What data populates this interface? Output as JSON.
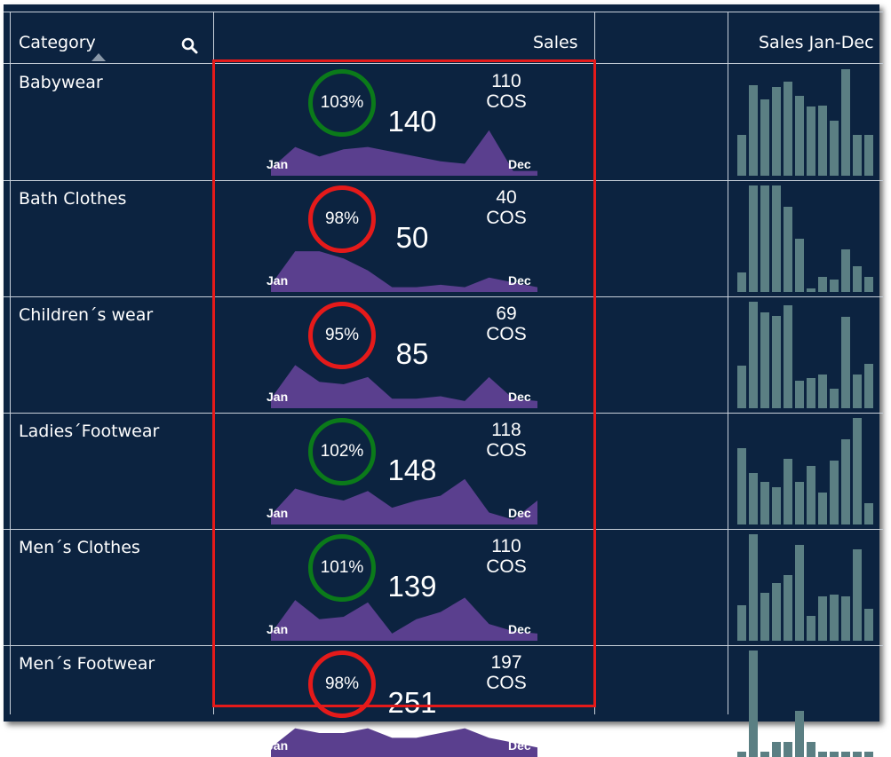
{
  "header": {
    "category_label": "Category",
    "sales_label": "Sales",
    "sales_range_label": "Sales Jan-Dec",
    "search_icon": "search-icon",
    "sort_icon": "sort-ascending-icon"
  },
  "spark_start_label": "Jan",
  "spark_end_label": "Dec",
  "colors": {
    "background": "#0c2340",
    "good": "#0b7a1a",
    "bad": "#e51a1a",
    "area": "#5a3f8e",
    "bars": "#5b7f83",
    "highlight": "#e51a1a"
  },
  "rows": [
    {
      "category": "Babywear",
      "pct": "103%",
      "status": "good",
      "sales": "140",
      "cos_value": "110",
      "cos_label": "COS",
      "spark": [
        0.15,
        0.6,
        0.4,
        0.55,
        0.6,
        0.5,
        0.4,
        0.3,
        0.25,
        0.95,
        0.1,
        0.1
      ],
      "monthly": [
        0.38,
        0.85,
        0.72,
        0.83,
        0.88,
        0.75,
        0.65,
        0.66,
        0.52,
        1.0,
        0.38,
        0.38
      ]
    },
    {
      "category": "Bath Clothes",
      "pct": "98%",
      "status": "bad",
      "sales": "50",
      "cos_value": "40",
      "cos_label": "COS",
      "spark": [
        0.15,
        0.85,
        0.85,
        0.7,
        0.45,
        0.1,
        0.1,
        0.15,
        0.1,
        0.3,
        0.2,
        0.1
      ],
      "monthly": [
        0.18,
        1.0,
        1.0,
        1.0,
        0.8,
        0.5,
        0.03,
        0.14,
        0.12,
        0.4,
        0.24,
        0.14
      ]
    },
    {
      "category": "Children´s wear",
      "pct": "95%",
      "status": "bad",
      "sales": "85",
      "cos_value": "69",
      "cos_label": "COS",
      "spark": [
        0.2,
        0.9,
        0.55,
        0.5,
        0.65,
        0.2,
        0.2,
        0.25,
        0.15,
        0.65,
        0.2,
        0.15
      ],
      "monthly": [
        0.4,
        1.0,
        0.9,
        0.87,
        0.97,
        0.26,
        0.28,
        0.32,
        0.18,
        0.86,
        0.32,
        0.42
      ]
    },
    {
      "category": "Ladies´Footwear",
      "pct": "102%",
      "status": "good",
      "sales": "148",
      "cos_value": "118",
      "cos_label": "COS",
      "spark": [
        0.2,
        0.75,
        0.6,
        0.5,
        0.7,
        0.35,
        0.5,
        0.6,
        0.95,
        0.25,
        0.1,
        0.5
      ],
      "monthly": [
        0.72,
        0.48,
        0.4,
        0.35,
        0.62,
        0.4,
        0.55,
        0.3,
        0.6,
        0.8,
        1.0,
        0.2
      ]
    },
    {
      "category": "Men´s Clothes",
      "pct": "101%",
      "status": "good",
      "sales": "139",
      "cos_value": "110",
      "cos_label": "COS",
      "spark": [
        0.15,
        0.85,
        0.45,
        0.5,
        0.8,
        0.15,
        0.45,
        0.6,
        0.9,
        0.35,
        0.2,
        0.15
      ],
      "monthly": [
        0.33,
        1.0,
        0.45,
        0.54,
        0.62,
        0.9,
        0.23,
        0.42,
        0.43,
        0.42,
        0.86,
        0.3
      ]
    },
    {
      "category": "Men´s Footwear",
      "pct": "98%",
      "status": "bad",
      "sales": "251",
      "cos_value": "197",
      "cos_label": "COS",
      "spark": [
        0.2,
        0.6,
        0.5,
        0.5,
        0.6,
        0.4,
        0.4,
        0.5,
        0.6,
        0.4,
        0.3,
        0.2
      ],
      "monthly": [
        0.05,
        1.0,
        0.05,
        0.14,
        0.14,
        0.43,
        0.14,
        0.05,
        0.05,
        0.05,
        0.05,
        0.05
      ]
    }
  ]
}
